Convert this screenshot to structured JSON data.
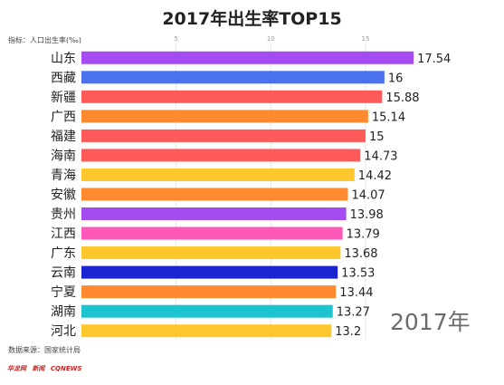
{
  "title": "2017年出生率TOP15",
  "indicator_label": "指标：人口出生率(‰)",
  "year_label": "2017年",
  "source": "数据来源：国家统计局",
  "logos": [
    "华龙网",
    "新闻",
    "CQNEWS"
  ],
  "chart_data": {
    "type": "bar",
    "orientation": "horizontal",
    "title": "2017年出生率TOP15",
    "xlabel": "",
    "ylabel": "",
    "xlim": [
      0,
      19
    ],
    "x_ticks": [
      5,
      10,
      15
    ],
    "grid": true,
    "categories": [
      "山东",
      "西藏",
      "新疆",
      "广西",
      "福建",
      "海南",
      "青海",
      "安徽",
      "贵州",
      "江西",
      "广东",
      "云南",
      "宁夏",
      "湖南",
      "河北"
    ],
    "values": [
      17.54,
      16,
      15.88,
      15.14,
      15,
      14.73,
      14.42,
      14.07,
      13.98,
      13.79,
      13.68,
      13.53,
      13.44,
      13.27,
      13.2
    ],
    "value_labels": [
      "17.54",
      "16",
      "15.88",
      "15.14",
      "15",
      "14.73",
      "14.42",
      "14.07",
      "13.98",
      "13.79",
      "13.68",
      "13.53",
      "13.44",
      "13.27",
      "13.2"
    ],
    "colors": [
      "#a44cf0",
      "#4a72ee",
      "#ff5a5a",
      "#ff8a30",
      "#ff5a5a",
      "#ff5a5a",
      "#ffc72e",
      "#ff8a30",
      "#a44cf0",
      "#ff58b8",
      "#ffc72e",
      "#1a24cf",
      "#ff8a30",
      "#1cc4d0",
      "#ffc72e"
    ]
  }
}
